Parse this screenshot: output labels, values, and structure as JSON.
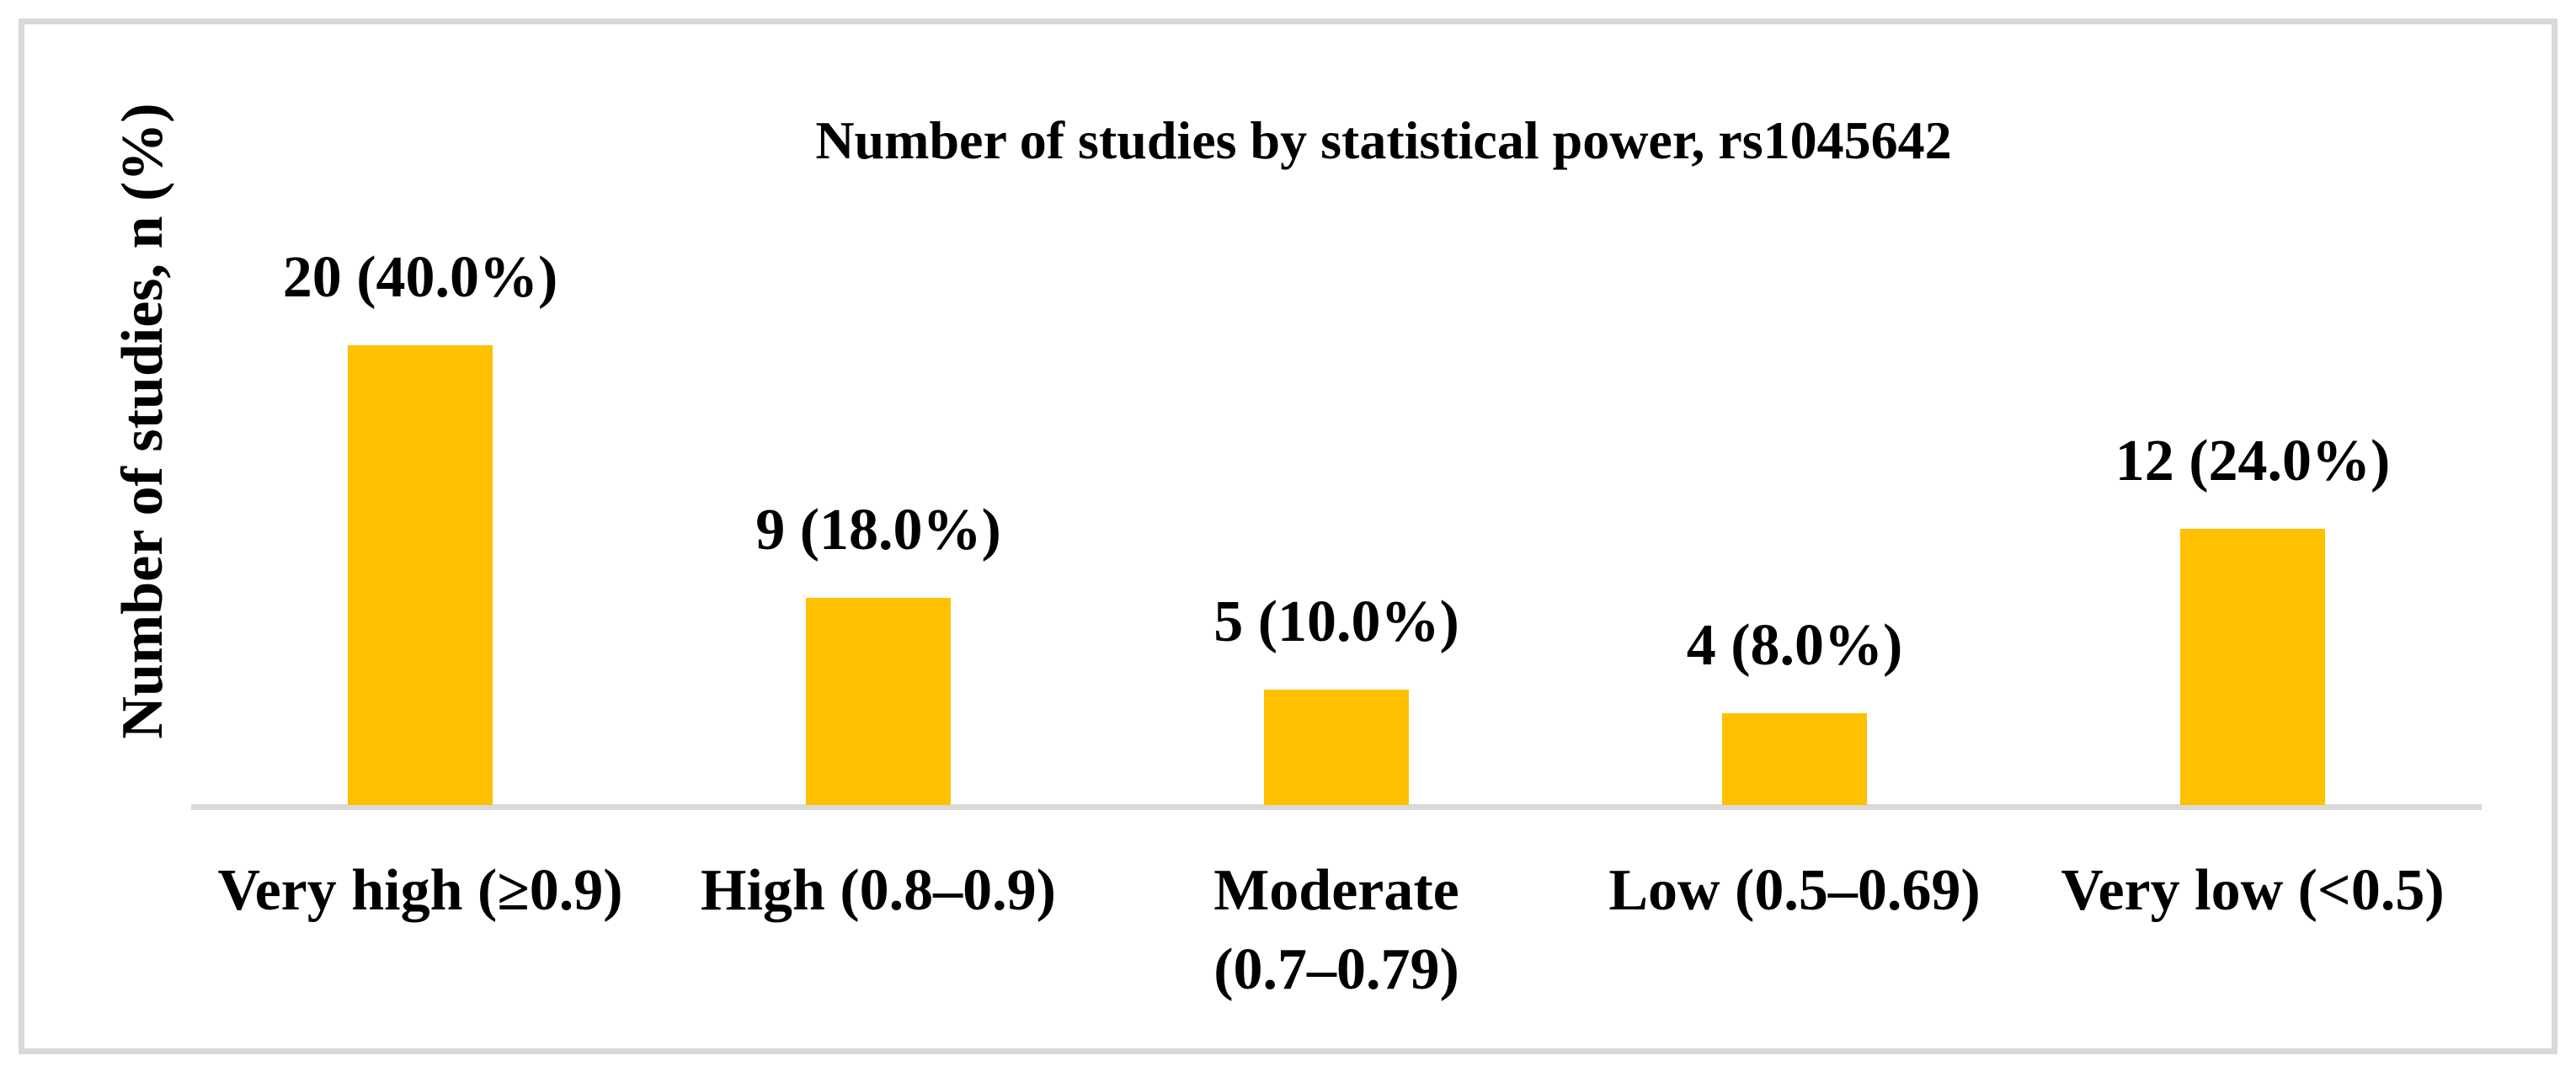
{
  "figure": {
    "background_color": "#ffffff",
    "border_color": "#d9d9d9"
  },
  "chart_data": {
    "type": "bar",
    "title": "Number of studies by statistical power, rs1045642",
    "ylabel": "Number of studies, n (%)",
    "xlabel": "",
    "categories": [
      "Very high (≥0.9)",
      "High (0.8–0.9)",
      "Moderate\n(0.7–0.79)",
      "Low (0.5–0.69)",
      "Very low (<0.5)"
    ],
    "values": [
      20,
      9,
      5,
      4,
      12
    ],
    "percentages": [
      40.0,
      18.0,
      10.0,
      8.0,
      24.0
    ],
    "data_labels": [
      "20 (40.0%)",
      "9 (18.0%)",
      "5 (10.0%)",
      "4 (8.0%)",
      "12 (24.0%)"
    ],
    "bar_color": "#ffc000",
    "axis_line_color": "#d9d9d9",
    "grid": false,
    "legend": false,
    "data_labels_position": "above-bar"
  }
}
